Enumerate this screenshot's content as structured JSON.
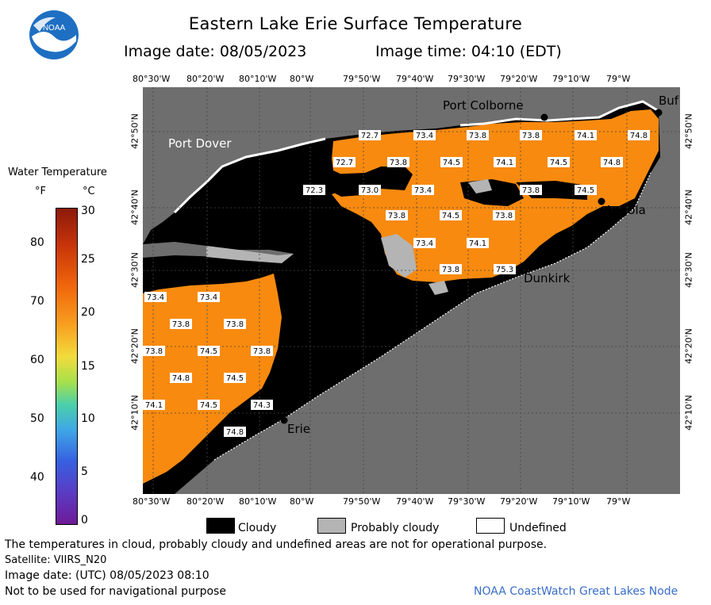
{
  "header": {
    "title": "Eastern Lake Erie Surface Temperature",
    "image_date": "Image date: 08/05/2023",
    "image_time": "Image time: 04:10 (EDT)",
    "logo_text": "NOAA"
  },
  "map": {
    "top_ticks": [
      "80°30'W",
      "80°20'W",
      "80°10'W",
      "80°W",
      "79°50'W",
      "79°40'W",
      "79°30'W",
      "79°20'W",
      "79°10'W",
      "79°W"
    ],
    "bottom_ticks": [
      "80°30'W",
      "80°20'W",
      "80°10'W",
      "80°W",
      "79°50'W",
      "79°40'W",
      "79°30'W",
      "79°20'W",
      "79°10'W",
      "79°W"
    ],
    "left_ticks": [
      "42°50'N",
      "42°40'N",
      "42°30'N",
      "42°20'N",
      "42°10'N"
    ],
    "right_ticks": [
      "42°50'N",
      "42°40'N",
      "42°30'N",
      "42°20'N",
      "42°10'N"
    ],
    "places": [
      "Port Colborne",
      "Buf",
      "Port Dover",
      "Angola",
      "Dunkirk",
      "Erie"
    ],
    "temperature_labels": [
      "72.7",
      "73.4",
      "73.8",
      "73.8",
      "74.1",
      "74.8",
      "72.7",
      "73.8",
      "74.5",
      "74.1",
      "74.5",
      "74.8",
      "72.3",
      "73.0",
      "73.4",
      "73.8",
      "74.5",
      "73.8",
      "74.5",
      "73.8",
      "73.4",
      "74.1",
      "73.8",
      "75.3",
      "73.4",
      "73.4",
      "73.8",
      "73.8",
      "73.8",
      "74.5",
      "73.8",
      "74.8",
      "74.5",
      "74.1",
      "74.5",
      "74.3",
      "74.8"
    ],
    "colors": {
      "ocean": "#6e6e6e",
      "cloud": "#000000",
      "water": "#f88a0f",
      "land": "#7a7a7a",
      "grid": "#454545"
    }
  },
  "colorbar": {
    "title": "Water Temperature",
    "unit_f": "°F",
    "unit_c": "°C",
    "f_ticks": [
      "80",
      "70",
      "60",
      "50",
      "40"
    ],
    "c_ticks": [
      "30",
      "25",
      "20",
      "15",
      "10",
      "5",
      "0"
    ]
  },
  "legend": {
    "cloudy": "Cloudy",
    "probably_cloudy": "Probably cloudy",
    "undefined": "Undefined"
  },
  "footer": {
    "disclaimer": "The temperatures in cloud, probably cloudy and undefined areas are not for operational purpose.",
    "satellite": "Satellite: VIIRS_N20",
    "utc_date": "Image date: (UTC) 08/05/2023  08:10",
    "nav_warning": "Not to be used for navigational purpose",
    "credit": "NOAA CoastWatch Great Lakes Node"
  }
}
